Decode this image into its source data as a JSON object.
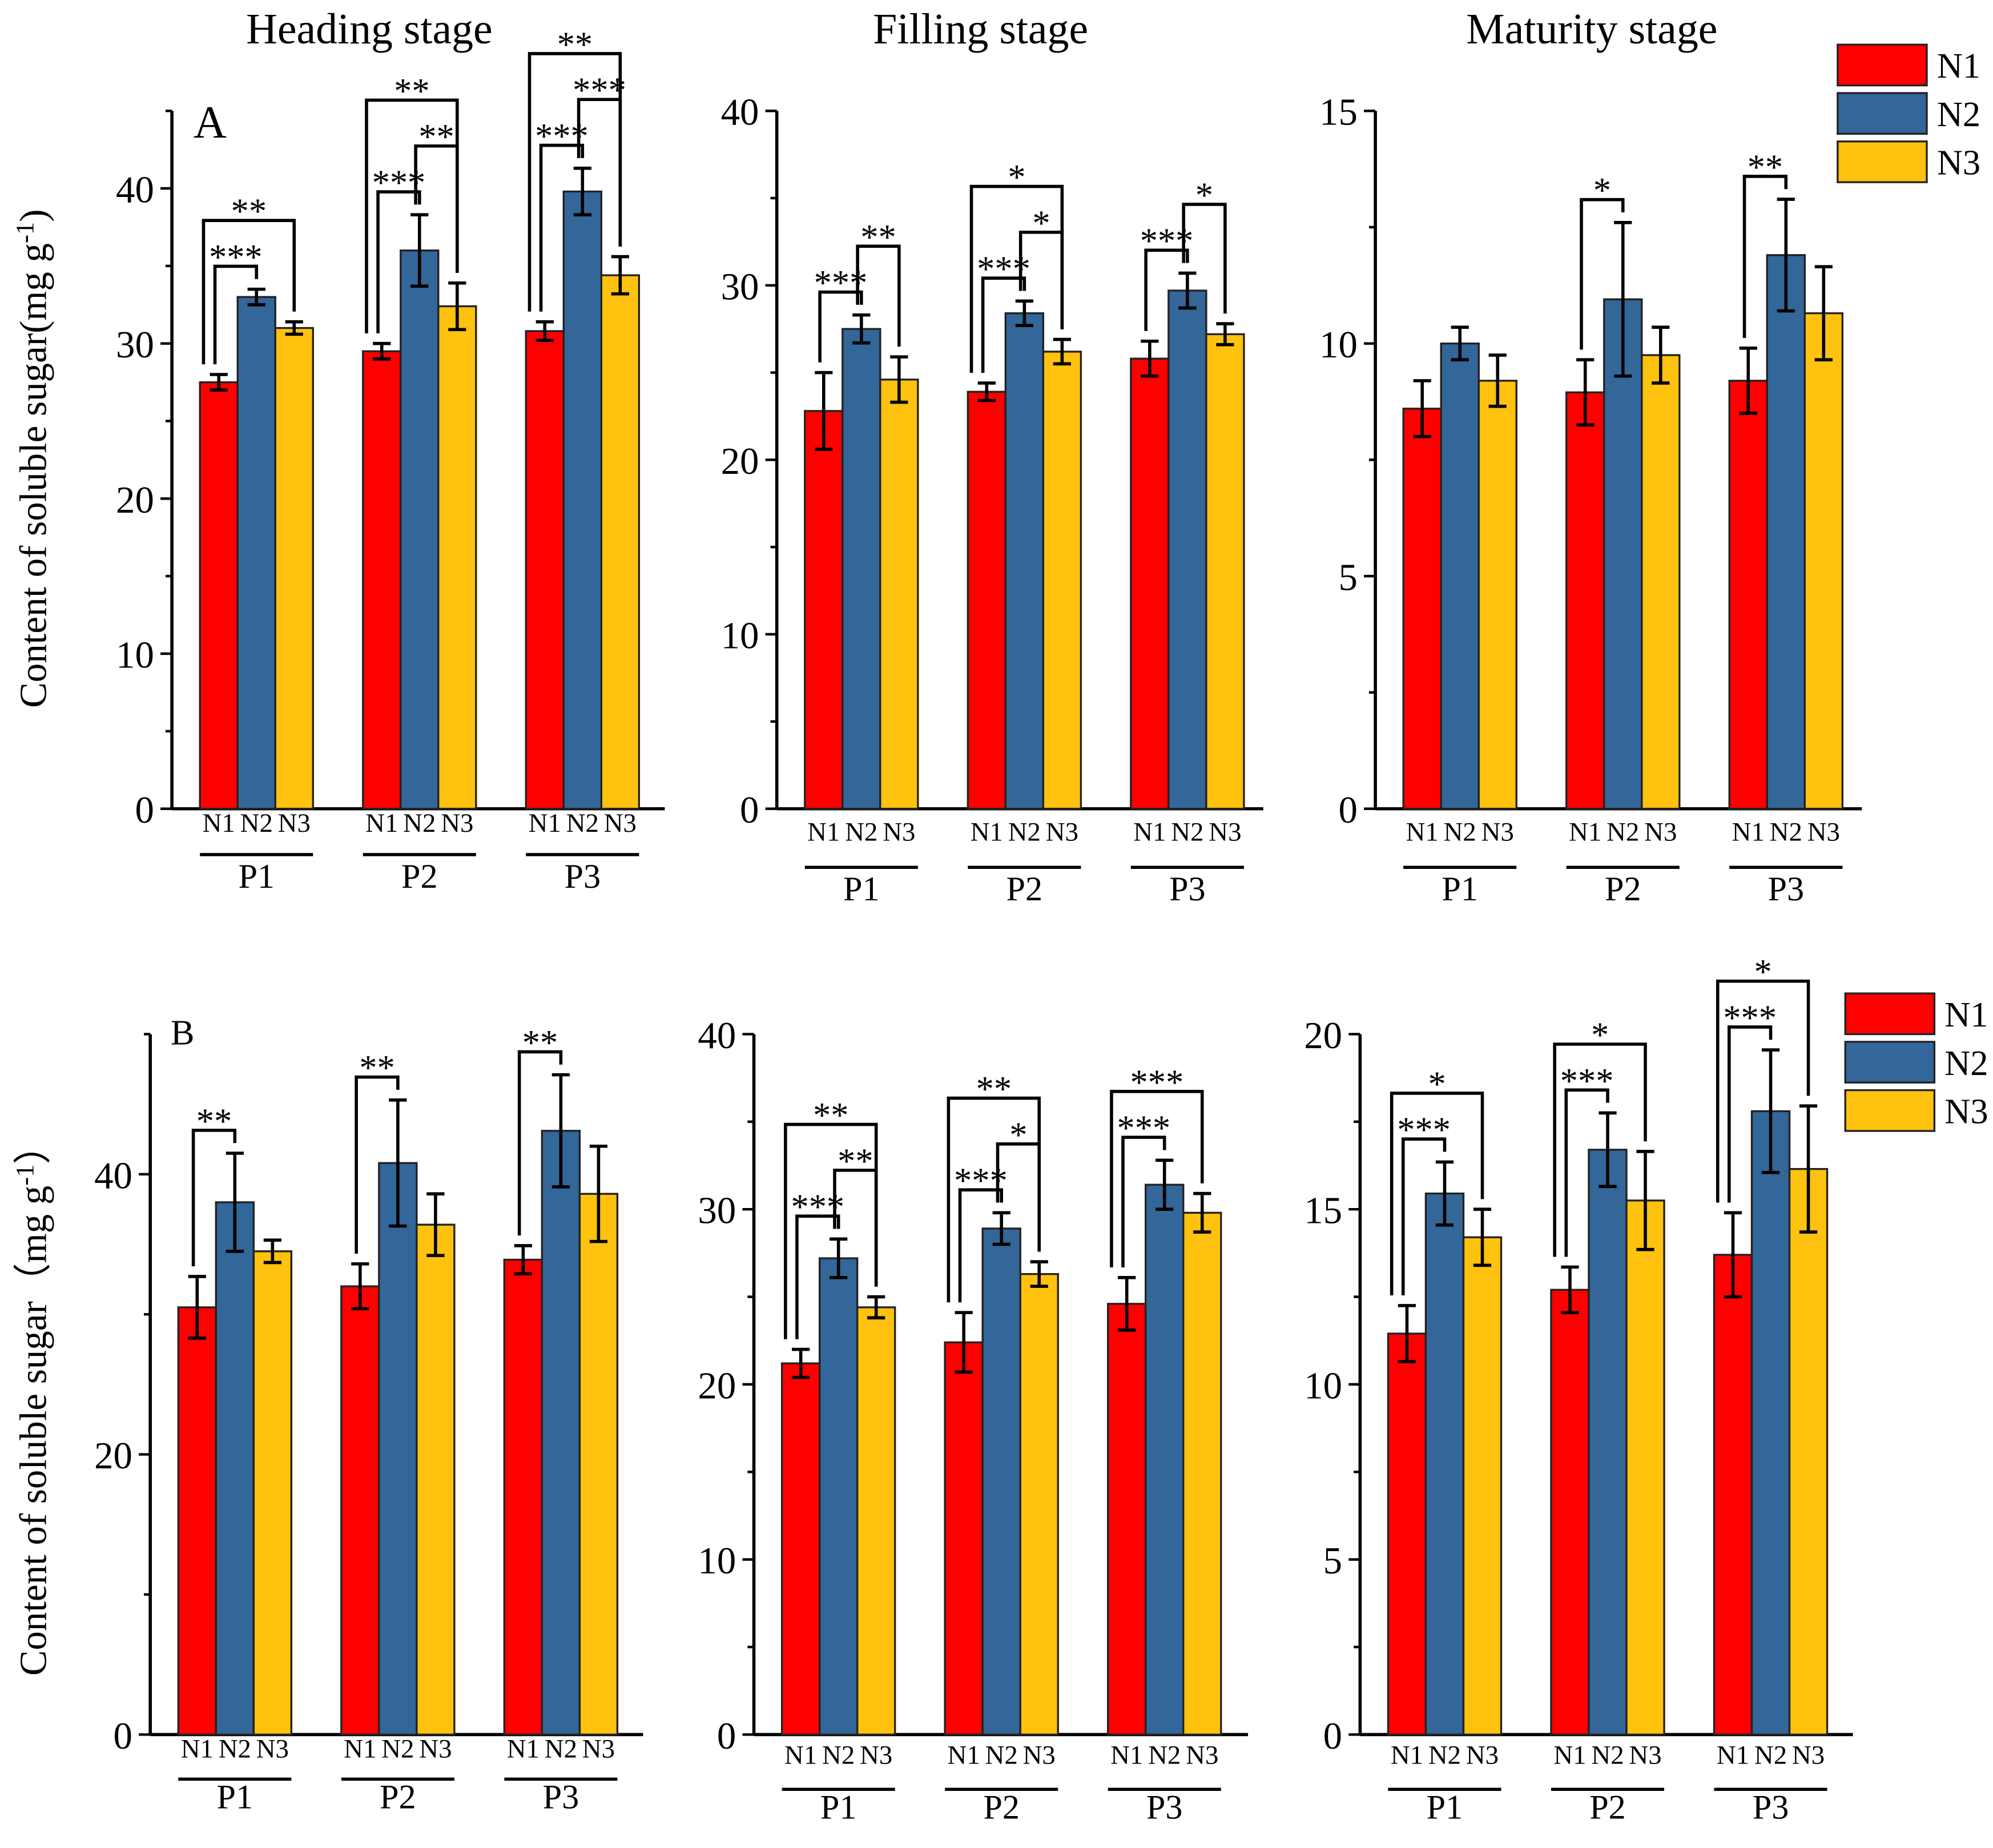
{
  "legend": [
    {
      "name": "N1",
      "color": "#ff0000"
    },
    {
      "name": "N2",
      "color": "#336699"
    },
    {
      "name": "N3",
      "color": "#ffc20e"
    }
  ],
  "row_labels": [
    "A",
    "B"
  ],
  "ylabels": [
    "Content of soluble sugar(mg g",
    "Content of soluble sugar（mg g"
  ],
  "ylabel_sup": "-1",
  "ylabel_close": [
    ")",
    "）"
  ],
  "chart_data": [
    {
      "type": "bar",
      "row": "A",
      "title": "Heading stage",
      "ylim": [
        0,
        45
      ],
      "ticks": [
        0,
        10,
        20,
        30,
        40
      ],
      "minor": 5,
      "categories": [
        "P1",
        "P2",
        "P3"
      ],
      "sub": [
        "N1",
        "N2",
        "N3"
      ],
      "series": [
        {
          "name": "N1",
          "values": [
            27.5,
            29.5,
            30.8
          ],
          "err": [
            0.5,
            0.5,
            0.6
          ]
        },
        {
          "name": "N2",
          "values": [
            33.0,
            36.0,
            39.8
          ],
          "err": [
            0.5,
            2.3,
            1.5
          ]
        },
        {
          "name": "N3",
          "values": [
            31.0,
            32.4,
            34.4
          ],
          "err": [
            0.4,
            1.5,
            1.2
          ]
        }
      ],
      "sig": [
        {
          "g": 0,
          "a": 0,
          "b": 1,
          "label": "***"
        },
        {
          "g": 0,
          "a": 0,
          "b": 2,
          "label": "**"
        },
        {
          "g": 1,
          "a": 0,
          "b": 1,
          "label": "***"
        },
        {
          "g": 1,
          "a": 1,
          "b": 2,
          "label": "**"
        },
        {
          "g": 1,
          "a": 0,
          "b": 2,
          "label": "**"
        },
        {
          "g": 2,
          "a": 0,
          "b": 1,
          "label": "***"
        },
        {
          "g": 2,
          "a": 1,
          "b": 2,
          "label": "***"
        },
        {
          "g": 2,
          "a": 0,
          "b": 2,
          "label": "**"
        }
      ]
    },
    {
      "type": "bar",
      "row": "A",
      "title": "Filling stage",
      "ylim": [
        0,
        40
      ],
      "ticks": [
        0,
        10,
        20,
        30,
        40
      ],
      "minor": 5,
      "categories": [
        "P1",
        "P2",
        "P3"
      ],
      "sub": [
        "N1",
        "N2",
        "N3"
      ],
      "series": [
        {
          "name": "N1",
          "values": [
            22.8,
            23.9,
            25.8
          ],
          "err": [
            2.2,
            0.5,
            1.0
          ]
        },
        {
          "name": "N2",
          "values": [
            27.5,
            28.4,
            29.7
          ],
          "err": [
            0.8,
            0.7,
            1.0
          ]
        },
        {
          "name": "N3",
          "values": [
            24.6,
            26.2,
            27.2
          ],
          "err": [
            1.3,
            0.7,
            0.6
          ]
        }
      ],
      "sig": [
        {
          "g": 0,
          "a": 0,
          "b": 1,
          "label": "***"
        },
        {
          "g": 0,
          "a": 1,
          "b": 2,
          "label": "**"
        },
        {
          "g": 1,
          "a": 0,
          "b": 1,
          "label": "***"
        },
        {
          "g": 1,
          "a": 1,
          "b": 2,
          "label": "*"
        },
        {
          "g": 1,
          "a": 0,
          "b": 2,
          "label": "*"
        },
        {
          "g": 2,
          "a": 0,
          "b": 1,
          "label": "***"
        },
        {
          "g": 2,
          "a": 1,
          "b": 2,
          "label": "*"
        }
      ]
    },
    {
      "type": "bar",
      "row": "A",
      "title": "Maturity stage",
      "ylim": [
        0,
        15
      ],
      "ticks": [
        0,
        5,
        10,
        15
      ],
      "minor": 2.5,
      "categories": [
        "P1",
        "P2",
        "P3"
      ],
      "sub": [
        "N1",
        "N2",
        "N3"
      ],
      "series": [
        {
          "name": "N1",
          "values": [
            8.6,
            8.95,
            9.2
          ],
          "err": [
            0.6,
            0.7,
            0.7
          ]
        },
        {
          "name": "N2",
          "values": [
            10.0,
            10.95,
            11.9
          ],
          "err": [
            0.35,
            1.65,
            1.2
          ]
        },
        {
          "name": "N3",
          "values": [
            9.2,
            9.75,
            10.65
          ],
          "err": [
            0.55,
            0.6,
            1.0
          ]
        }
      ],
      "sig": [
        {
          "g": 1,
          "a": 0,
          "b": 1,
          "label": "*"
        },
        {
          "g": 2,
          "a": 0,
          "b": 1,
          "label": "**"
        }
      ]
    },
    {
      "type": "bar",
      "row": "B",
      "title": "",
      "ylim": [
        0,
        50
      ],
      "ticks": [
        0,
        20,
        40
      ],
      "minor": 10,
      "categories": [
        "P1",
        "P2",
        "P3"
      ],
      "sub": [
        "N1",
        "N2",
        "N3"
      ],
      "series": [
        {
          "name": "N1",
          "values": [
            30.5,
            32.0,
            33.9
          ],
          "err": [
            2.2,
            1.6,
            1.0
          ]
        },
        {
          "name": "N2",
          "values": [
            38.0,
            40.8,
            43.1
          ],
          "err": [
            3.5,
            4.5,
            4.0
          ]
        },
        {
          "name": "N3",
          "values": [
            34.5,
            36.4,
            38.6
          ],
          "err": [
            0.8,
            2.2,
            3.4
          ]
        }
      ],
      "sig": [
        {
          "g": 0,
          "a": 0,
          "b": 1,
          "label": "**"
        },
        {
          "g": 1,
          "a": 0,
          "b": 1,
          "label": "**"
        },
        {
          "g": 2,
          "a": 0,
          "b": 1,
          "label": "**"
        }
      ]
    },
    {
      "type": "bar",
      "row": "B",
      "title": "",
      "ylim": [
        0,
        40
      ],
      "ticks": [
        0,
        10,
        20,
        30,
        40
      ],
      "minor": 5,
      "categories": [
        "P1",
        "P2",
        "P3"
      ],
      "sub": [
        "N1",
        "N2",
        "N3"
      ],
      "series": [
        {
          "name": "N1",
          "values": [
            21.2,
            22.4,
            24.6
          ],
          "err": [
            0.8,
            1.7,
            1.5
          ]
        },
        {
          "name": "N2",
          "values": [
            27.2,
            28.9,
            31.4
          ],
          "err": [
            1.1,
            0.9,
            1.4
          ]
        },
        {
          "name": "N3",
          "values": [
            24.4,
            26.3,
            29.8
          ],
          "err": [
            0.6,
            0.7,
            1.1
          ]
        }
      ],
      "sig": [
        {
          "g": 0,
          "a": 0,
          "b": 1,
          "label": "***"
        },
        {
          "g": 0,
          "a": 1,
          "b": 2,
          "label": "**"
        },
        {
          "g": 0,
          "a": 0,
          "b": 2,
          "label": "**"
        },
        {
          "g": 1,
          "a": 0,
          "b": 1,
          "label": "***"
        },
        {
          "g": 1,
          "a": 1,
          "b": 2,
          "label": "*"
        },
        {
          "g": 1,
          "a": 0,
          "b": 2,
          "label": "**"
        },
        {
          "g": 2,
          "a": 0,
          "b": 1,
          "label": "***"
        },
        {
          "g": 2,
          "a": 0,
          "b": 2,
          "label": "***"
        }
      ]
    },
    {
      "type": "bar",
      "row": "B",
      "title": "",
      "ylim": [
        0,
        20
      ],
      "ticks": [
        0,
        5,
        10,
        15,
        20
      ],
      "minor": 2.5,
      "categories": [
        "P1",
        "P2",
        "P3"
      ],
      "sub": [
        "N1",
        "N2",
        "N3"
      ],
      "series": [
        {
          "name": "N1",
          "values": [
            11.45,
            12.7,
            13.7
          ],
          "err": [
            0.8,
            0.65,
            1.2
          ]
        },
        {
          "name": "N2",
          "values": [
            15.45,
            16.7,
            17.8
          ],
          "err": [
            0.9,
            1.05,
            1.75
          ]
        },
        {
          "name": "N3",
          "values": [
            14.2,
            15.25,
            16.15
          ],
          "err": [
            0.8,
            1.4,
            1.8
          ]
        }
      ],
      "sig": [
        {
          "g": 0,
          "a": 0,
          "b": 1,
          "label": "***"
        },
        {
          "g": 0,
          "a": 0,
          "b": 2,
          "label": "*"
        },
        {
          "g": 1,
          "a": 0,
          "b": 1,
          "label": "***"
        },
        {
          "g": 1,
          "a": 0,
          "b": 2,
          "label": "*"
        },
        {
          "g": 2,
          "a": 0,
          "b": 1,
          "label": "***"
        },
        {
          "g": 2,
          "a": 0,
          "b": 2,
          "label": "*"
        }
      ]
    }
  ]
}
